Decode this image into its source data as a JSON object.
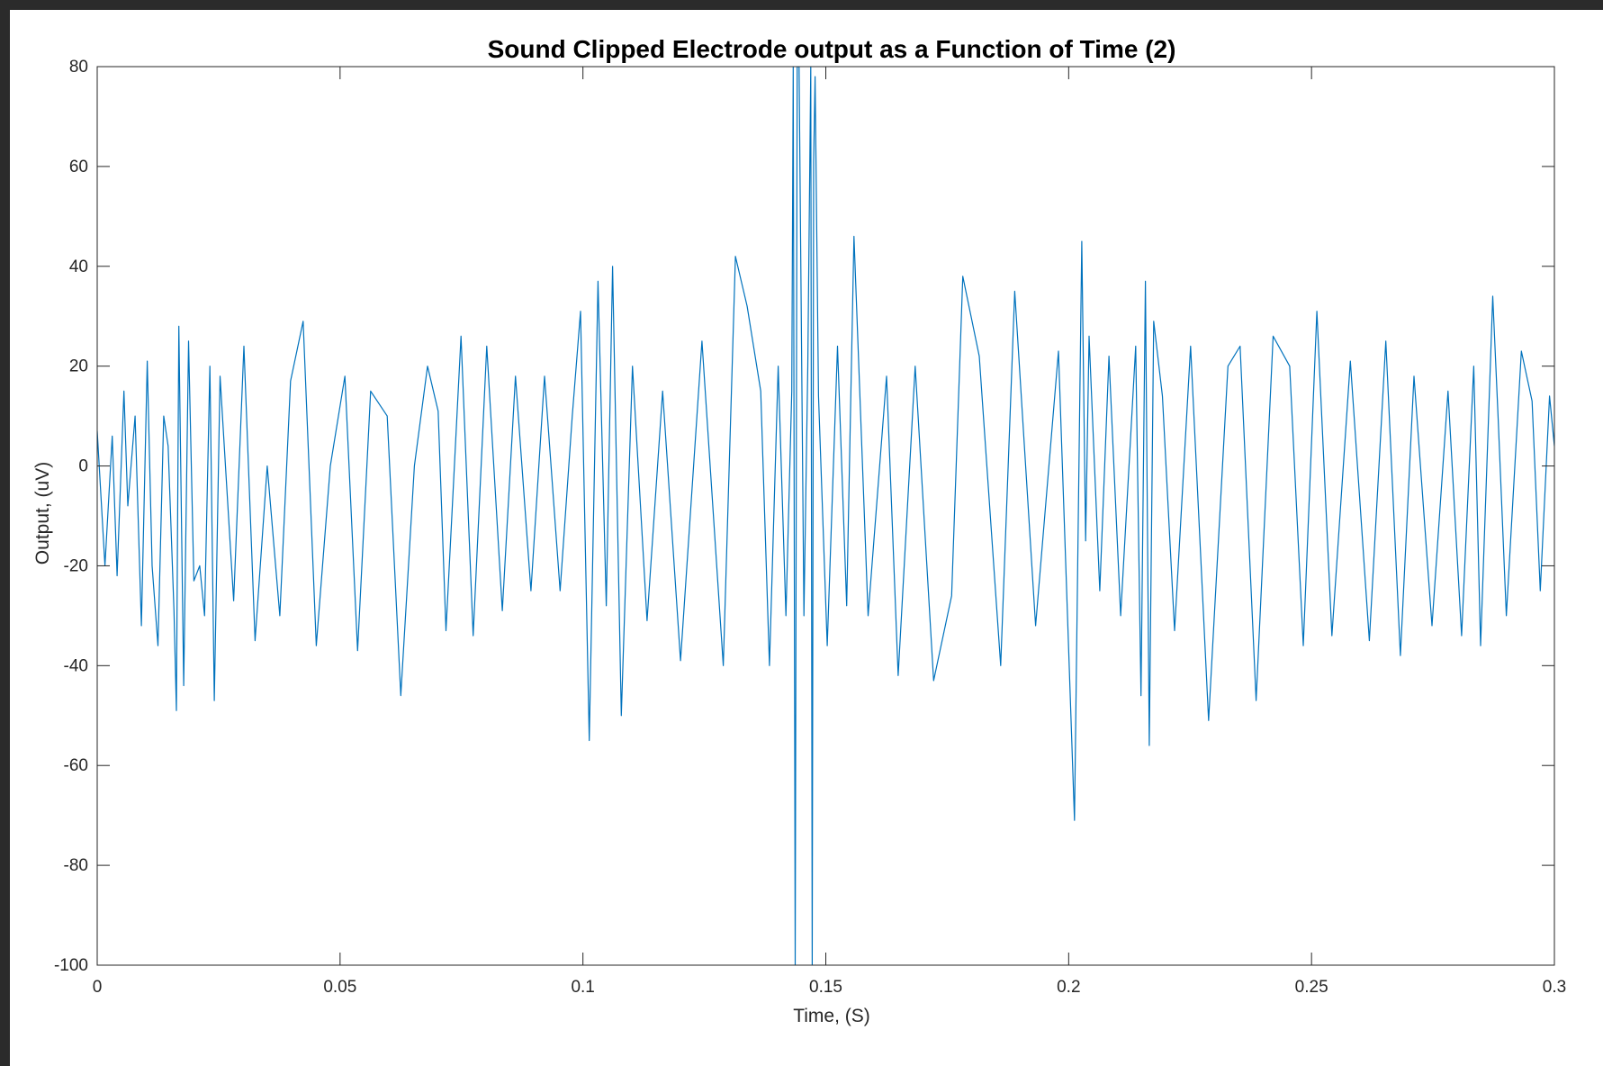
{
  "chart_data": {
    "type": "line",
    "title": "Sound Clipped Electrode output as a Function of Time (2)",
    "xlabel": "Time, (S)",
    "ylabel": "Output, (uV)",
    "xlim": [
      0,
      0.3
    ],
    "ylim": [
      -100,
      80
    ],
    "grid": false,
    "x_ticks": [
      0,
      0.05,
      0.1,
      0.15,
      0.2,
      0.25,
      0.3
    ],
    "x_tick_labels": [
      "0",
      "0.05",
      "0.1",
      "0.15",
      "0.2",
      "0.25",
      "0.3"
    ],
    "y_ticks": [
      80,
      60,
      40,
      20,
      0,
      -20,
      -40,
      -60,
      -80,
      -100
    ],
    "y_tick_labels": [
      "80",
      "60",
      "40",
      "20",
      "0",
      "-20",
      "-40",
      "-60",
      "-80",
      "-100"
    ],
    "series": [
      {
        "color": "#0072BD",
        "x": [
          0,
          0.0016,
          0.0031,
          0.0041,
          0.0055,
          0.0063,
          0.0078,
          0.0091,
          0.0103,
          0.0113,
          0.0125,
          0.0137,
          0.0146,
          0.0158,
          0.0163,
          0.0168,
          0.0178,
          0.0188,
          0.0199,
          0.0211,
          0.0221,
          0.0232,
          0.0241,
          0.0253,
          0.0264,
          0.0281,
          0.0302,
          0.0325,
          0.035,
          0.0376,
          0.0398,
          0.0424,
          0.0451,
          0.048,
          0.051,
          0.0536,
          0.0563,
          0.0597,
          0.0625,
          0.0653,
          0.068,
          0.0702,
          0.0718,
          0.0749,
          0.0774,
          0.0802,
          0.0834,
          0.0861,
          0.0893,
          0.0921,
          0.0953,
          0.0978,
          0.0995,
          0.1013,
          0.1031,
          0.1048,
          0.1061,
          0.1079,
          0.1102,
          0.1132,
          0.1164,
          0.1201,
          0.1245,
          0.1289,
          0.1314,
          0.1338,
          0.1366,
          0.1384,
          0.1402,
          0.1418,
          0.143,
          0.1433,
          0.1437,
          0.1441,
          0.1445,
          0.1455,
          0.1463,
          0.1469,
          0.1472,
          0.1475,
          0.1478,
          0.1485,
          0.1503,
          0.1524,
          0.1543,
          0.1558,
          0.1587,
          0.1625,
          0.1649,
          0.1684,
          0.1722,
          0.1759,
          0.1782,
          0.1816,
          0.186,
          0.1889,
          0.1932,
          0.1979,
          0.2012,
          0.2027,
          0.2035,
          0.2042,
          0.2064,
          0.2083,
          0.2107,
          0.2138,
          0.2149,
          0.2158,
          0.2166,
          0.2175,
          0.2193,
          0.2218,
          0.2251,
          0.2288,
          0.2328,
          0.2353,
          0.2386,
          0.2421,
          0.2455,
          0.2483,
          0.2511,
          0.2542,
          0.258,
          0.2619,
          0.2653,
          0.2683,
          0.2711,
          0.2748,
          0.2781,
          0.2809,
          0.2834,
          0.2848,
          0.2873,
          0.2884,
          0.2901,
          0.2932,
          0.2954,
          0.2971,
          0.299,
          0.3
        ],
        "y": [
          7,
          -20,
          6,
          -22,
          15,
          -8,
          10,
          -32,
          21,
          -20,
          -36,
          10,
          4,
          -29,
          -49,
          28,
          -44,
          25,
          -23,
          -20,
          -30,
          20,
          -47,
          18,
          0,
          -27,
          24,
          -35,
          0,
          -30,
          17,
          29,
          -36,
          0,
          18,
          -37,
          15,
          10,
          -46,
          0,
          20,
          11,
          -33,
          26,
          -34,
          24,
          -29,
          18,
          -25,
          18,
          -25,
          10,
          31,
          -55,
          37,
          -28,
          40,
          -50,
          20,
          -31,
          15,
          -39,
          25,
          -40,
          42,
          32,
          15,
          -40,
          20,
          -30,
          15,
          80,
          -100,
          80,
          80,
          -30,
          20,
          80,
          -100,
          61,
          78,
          14,
          -36,
          24,
          -28,
          46,
          -30,
          18,
          -42,
          20,
          -43,
          -26,
          38,
          22,
          -40,
          35,
          -32,
          23,
          -71,
          45,
          -15,
          26,
          -25,
          22,
          -30,
          24,
          -46,
          37,
          -56,
          29,
          14,
          -33,
          24,
          -51,
          20,
          24,
          -47,
          26,
          20,
          -36,
          31,
          -34,
          21,
          -35,
          25,
          -38,
          18,
          -32,
          15,
          -34,
          20,
          -36,
          34,
          10,
          -30,
          23,
          13,
          -25,
          14,
          4
        ]
      }
    ]
  }
}
